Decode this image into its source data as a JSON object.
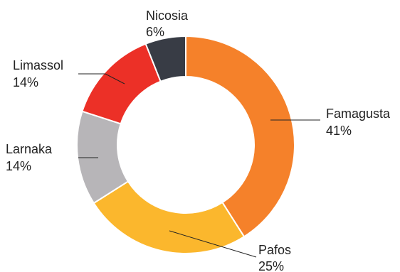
{
  "chart_data": {
    "type": "donut",
    "title": "",
    "legend": "none",
    "slices": [
      {
        "label": "Famagusta",
        "value": 41,
        "value_label": "41%",
        "color": "#F5812A"
      },
      {
        "label": "Pafos",
        "value": 25,
        "value_label": "25%",
        "color": "#FBB72D"
      },
      {
        "label": "Larnaka",
        "value": 14,
        "value_label": "14%",
        "color": "#B7B5B8"
      },
      {
        "label": "Limassol",
        "value": 14,
        "value_label": "14%",
        "color": "#EC3027"
      },
      {
        "label": "Nicosia",
        "value": 6,
        "value_label": "6%",
        "color": "#383C45"
      }
    ]
  }
}
